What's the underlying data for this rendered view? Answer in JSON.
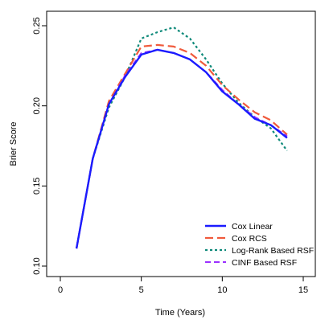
{
  "chart_data": {
    "type": "line",
    "title": "",
    "xlabel": "Time (Years)",
    "ylabel": "Brier Score",
    "xlim": [
      0,
      15
    ],
    "ylim": [
      0.1,
      0.25
    ],
    "xticks": [
      0,
      5,
      10,
      15
    ],
    "yticks": [
      0.1,
      0.15,
      0.2,
      0.25
    ],
    "ytick_labels": [
      "0.10",
      "0.15",
      "0.20",
      "0.25"
    ],
    "grid": false,
    "legend_position": "bottom-right",
    "x": [
      1,
      2,
      3,
      4,
      5,
      6,
      7,
      8,
      9,
      10,
      11,
      12,
      13,
      14
    ],
    "series": [
      {
        "name": "Cox Linear",
        "color": "#1b1bff",
        "dash": "solid",
        "values": [
          0.111,
          0.167,
          0.201,
          0.218,
          0.232,
          0.235,
          0.233,
          0.229,
          0.221,
          0.209,
          0.201,
          0.192,
          0.188,
          0.18
        ]
      },
      {
        "name": "Cox RCS",
        "color": "#f05a3c",
        "dash": "longdash",
        "values": [
          0.111,
          0.167,
          0.203,
          0.22,
          0.237,
          0.238,
          0.237,
          0.233,
          0.225,
          0.213,
          0.204,
          0.196,
          0.191,
          0.182
        ]
      },
      {
        "name": "Log-Rank Based RSF",
        "color": "#0f8a7a",
        "dash": "dotted",
        "values": [
          0.111,
          0.167,
          0.199,
          0.218,
          0.242,
          0.246,
          0.249,
          0.242,
          0.229,
          0.214,
          0.202,
          0.193,
          0.186,
          0.172
        ]
      },
      {
        "name": "CINF Based RSF",
        "color": "#9b30ff",
        "dash": "dashed",
        "values": [
          0.111,
          0.167,
          0.201,
          0.219,
          0.233,
          0.235,
          0.233,
          0.229,
          0.221,
          0.21,
          0.201,
          0.193,
          0.188,
          0.181
        ]
      }
    ]
  }
}
